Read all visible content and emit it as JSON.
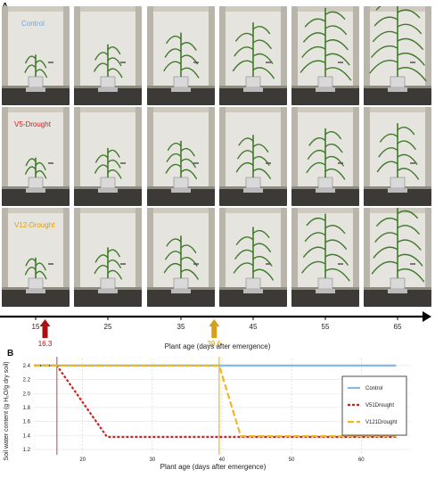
{
  "figure": {
    "panel_a_label": "A",
    "panel_b_label": "B"
  },
  "photo_panel": {
    "rows": [
      {
        "label": "Control",
        "color": "#6fa8dc",
        "growth": [
          0.18,
          0.32,
          0.48,
          0.62,
          0.82,
          0.95
        ]
      },
      {
        "label": "V5-Drought",
        "color": "#cc2222",
        "growth": [
          0.15,
          0.28,
          0.38,
          0.46,
          0.55,
          0.62
        ]
      },
      {
        "label": "V12-Drought",
        "color": "#e0a000",
        "growth": [
          0.16,
          0.3,
          0.46,
          0.58,
          0.76,
          0.86
        ]
      }
    ],
    "ages": [
      "15",
      "25",
      "35",
      "45",
      "55",
      "65"
    ]
  },
  "timeline": {
    "ticks": [
      "15",
      "25",
      "35",
      "45",
      "55",
      "65"
    ],
    "xlabel": "Plant age (days after emergence)",
    "markers": [
      {
        "label": "16.3",
        "value": 16.3,
        "color": "#aa1111"
      },
      {
        "label": "39.6",
        "value": 39.6,
        "color": "#d4a017"
      }
    ]
  },
  "chart_data": {
    "type": "line",
    "xlabel": "Plant age (days after emergence)",
    "ylabel": "Soil water content (g H₂O/g dry soil)",
    "xlim": [
      13,
      67
    ],
    "ylim": [
      1.15,
      2.5
    ],
    "xticks": [
      "20",
      "30",
      "40",
      "50",
      "60"
    ],
    "yticks": [
      "1.2",
      "1.4",
      "1.6",
      "1.8",
      "2.0",
      "2.2",
      "2.4"
    ],
    "grid": true,
    "legend_position": "right",
    "vlines": [
      {
        "x": 16.3,
        "color": "#d95f5f"
      },
      {
        "x": 39.6,
        "color": "#f0b429"
      }
    ],
    "series": [
      {
        "name": "Control",
        "color": "#86b8e6",
        "dash": "solid",
        "x": [
          13,
          65
        ],
        "y": [
          2.4,
          2.4
        ]
      },
      {
        "name": "V51Drought",
        "color": "#cc2222",
        "dash": "dotted",
        "x": [
          13,
          16.3,
          23.5,
          65
        ],
        "y": [
          2.4,
          2.4,
          1.38,
          1.38
        ]
      },
      {
        "name": "V121Drought",
        "color": "#f0b429",
        "dash": "dashed",
        "x": [
          13,
          39.6,
          42.7,
          65
        ],
        "y": [
          2.4,
          2.4,
          1.39,
          1.39
        ]
      }
    ]
  }
}
